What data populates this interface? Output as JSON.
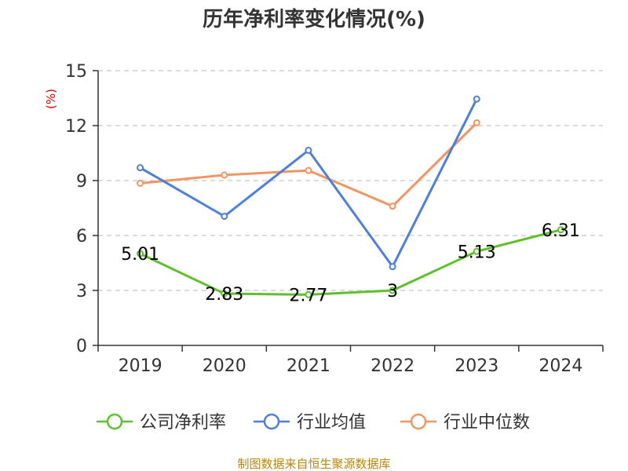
{
  "chart_data": {
    "type": "line",
    "title": "历年净利率变化情况(%)",
    "unit_label": "(%)",
    "categories": [
      "2019",
      "2020",
      "2021",
      "2022",
      "2023",
      "2024"
    ],
    "ylim": [
      0,
      15
    ],
    "yticks": [
      0,
      3,
      6,
      9,
      12,
      15
    ],
    "grid": true,
    "legend_position": "bottom",
    "series": [
      {
        "name": "公司净利率",
        "color": "#5dc12a",
        "values": [
          5.01,
          2.83,
          2.77,
          3,
          5.13,
          6.31
        ],
        "labels": [
          "5.01",
          "2.83",
          "2.77",
          "3",
          "5.13",
          "6.31"
        ]
      },
      {
        "name": "行业均值",
        "color": "#4f7fdc",
        "values": [
          9.7,
          7.05,
          10.65,
          4.3,
          13.45,
          null
        ]
      },
      {
        "name": "行业中位数",
        "color": "#f29463",
        "values": [
          8.85,
          9.3,
          9.55,
          7.6,
          12.15,
          null
        ]
      }
    ],
    "source": "制图数据来自恒生聚源数据库"
  }
}
